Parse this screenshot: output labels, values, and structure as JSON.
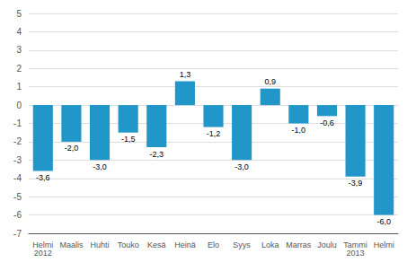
{
  "chart_data": {
    "type": "bar",
    "categories": [
      "Helmi",
      "Maalis",
      "Huhti",
      "Touko",
      "Kesä",
      "Heinä",
      "Elo",
      "Syys",
      "Loka",
      "Marras",
      "Joulu",
      "Tammi",
      "Helmi"
    ],
    "values": [
      -3.6,
      -2.0,
      -3.0,
      -1.5,
      -2.3,
      1.3,
      -1.2,
      -3.0,
      0.9,
      -1.0,
      -0.6,
      -3.9,
      -6.0
    ],
    "value_labels": [
      "-3,6",
      "-2,0",
      "-3,0",
      "-1,5",
      "-2,3",
      "1,3",
      "-1,2",
      "-3,0",
      "0,9",
      "-1,0",
      "-0,6",
      "-3,9",
      "-6,0"
    ],
    "data_labels": true,
    "color": "#2196c8",
    "ylim": [
      -7,
      5
    ],
    "yticks": [
      -7,
      -6,
      -5,
      -4,
      -3,
      -2,
      -1,
      0,
      1,
      2,
      3,
      4,
      5
    ],
    "grid": true,
    "annotations": [
      {
        "text": "2012",
        "x": 0
      },
      {
        "text": "2013",
        "x": 11
      }
    ]
  }
}
